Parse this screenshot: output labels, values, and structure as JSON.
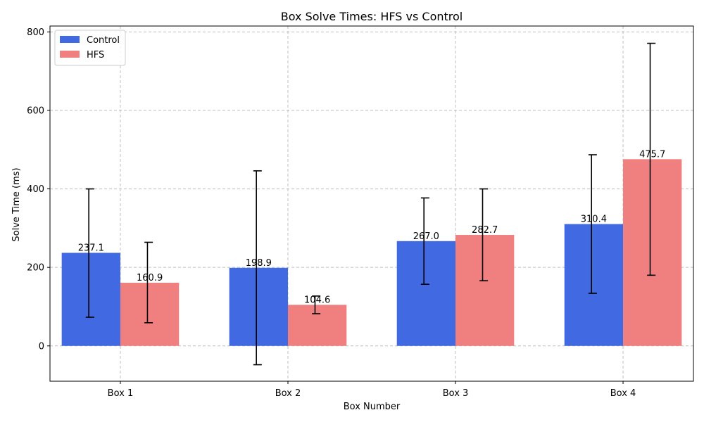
{
  "chart_data": {
    "type": "bar",
    "title": "Box Solve Times: HFS vs Control",
    "xlabel": "Box Number",
    "ylabel": "Solve Time (ms)",
    "categories": [
      "Box 1",
      "Box 2",
      "Box 3",
      "Box 4"
    ],
    "ylim": [
      -90,
      815
    ],
    "yticks": [
      0,
      200,
      400,
      600,
      800
    ],
    "grid": true,
    "legend_position": "top-left",
    "series": [
      {
        "name": "Control",
        "color": "#4169E1",
        "values": [
          237.1,
          198.9,
          267.0,
          310.4
        ],
        "labels": [
          "237.1",
          "198.9",
          "267.0",
          "310.4"
        ],
        "error_low": [
          73,
          -48,
          157,
          134
        ],
        "error_high": [
          400,
          446,
          377,
          487
        ]
      },
      {
        "name": "HFS",
        "color": "#F08080",
        "values": [
          160.9,
          104.6,
          282.7,
          475.7
        ],
        "labels": [
          "160.9",
          "104.6",
          "282.7",
          "475.7"
        ],
        "error_low": [
          59,
          82,
          166,
          180
        ],
        "error_high": [
          264,
          127,
          400,
          771
        ]
      }
    ]
  }
}
